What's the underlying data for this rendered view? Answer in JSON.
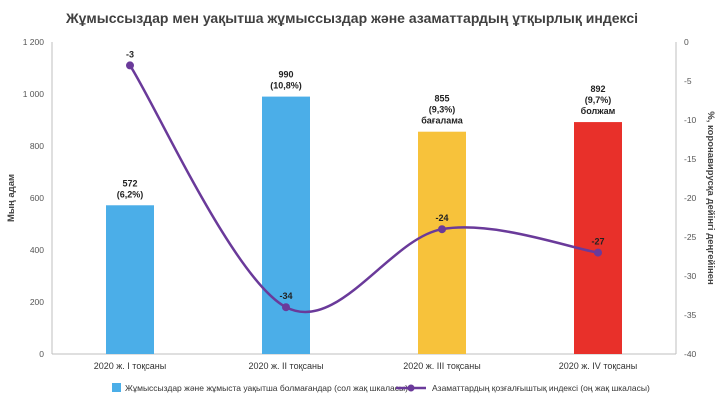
{
  "chart_data": {
    "type": "bar+line",
    "title": "Жұмыссыздар мен уақытша жұмыссыздар және азаматтардың ұтқырлық индексі",
    "categories": [
      "2020 ж. I тоқсаны",
      "2020 ж. II тоқсаны",
      "2020 ж. III тоқсаны",
      "2020 ж. IV тоқсаны"
    ],
    "bar_series": {
      "name": "Жұмыссыздар және жұмыста уақытша болмағандар (сол жақ шкаласы)",
      "values": [
        572,
        990,
        855,
        892
      ],
      "colors": [
        "#4baee8",
        "#4baee8",
        "#f7c23b",
        "#e8302a"
      ],
      "labels": [
        [
          "572",
          "(6,2%)"
        ],
        [
          "990",
          "(10,8%)"
        ],
        [
          "855",
          "(9,3%)",
          "бағалама"
        ],
        [
          "892",
          "(9,7%)",
          "болжам"
        ]
      ]
    },
    "line_series": {
      "name": "Азаматтардың қозғалғыштық индексі (оң жақ шкаласы)",
      "values": [
        -3,
        -34,
        -24,
        -27
      ],
      "labels": [
        "-3",
        "-34",
        "-24",
        "-27"
      ],
      "color": "#6a3a9a"
    },
    "left_axis": {
      "label": "Мың адам",
      "ylim": [
        0,
        1200
      ],
      "ticks": [
        0,
        200,
        400,
        600,
        800,
        1000,
        1200
      ],
      "tick_labels": [
        "0",
        "200",
        "400",
        "600",
        "800",
        "1 000",
        "1 200"
      ]
    },
    "right_axis": {
      "label": "%, коронавирусқа дейінгі деңгейінен",
      "ylim": [
        -40,
        0
      ],
      "ticks": [
        0,
        -5,
        -10,
        -15,
        -20,
        -25,
        -30,
        -35,
        -40
      ],
      "tick_labels": [
        "0",
        "-5",
        "-10",
        "-15",
        "-20",
        "-25",
        "-30",
        "-35",
        "-40"
      ]
    },
    "grid": false,
    "legend": "bottom"
  }
}
